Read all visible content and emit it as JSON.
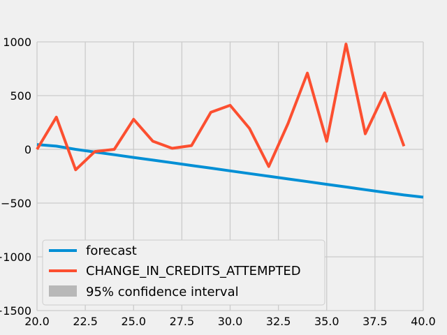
{
  "chart_data": {
    "type": "line",
    "title": "",
    "xlabel": "",
    "ylabel": "",
    "xlim": [
      20,
      40
    ],
    "ylim": [
      -1500,
      1000
    ],
    "grid": true,
    "legend_position": "lower-left",
    "x_ticks": [
      "20.0",
      "22.5",
      "25.0",
      "27.5",
      "30.0",
      "32.5",
      "35.0",
      "37.5",
      "40.0"
    ],
    "x_tick_values": [
      20,
      22.5,
      25,
      27.5,
      30,
      32.5,
      35,
      37.5,
      40
    ],
    "y_ticks": [
      "1000",
      "500",
      "0",
      "−500",
      "−1000",
      "−1500"
    ],
    "y_tick_values": [
      1000,
      500,
      0,
      -500,
      -1000,
      -1500
    ],
    "series": [
      {
        "name": "forecast",
        "color": "#008fd5",
        "x": [
          20,
          21,
          22,
          23,
          24,
          25,
          26,
          27,
          28,
          29,
          30,
          31,
          32,
          33,
          34,
          35,
          36,
          37,
          38,
          39,
          40
        ],
        "y": [
          45,
          30,
          0,
          -25,
          -50,
          -75,
          -100,
          -125,
          -150,
          -175,
          -200,
          -225,
          -250,
          -275,
          -300,
          -325,
          -350,
          -375,
          -400,
          -425,
          -445
        ]
      },
      {
        "name": "CHANGE_IN_CREDITS_ATTEMPTED",
        "color": "#fc4f30",
        "x": [
          20,
          21,
          22,
          23,
          24,
          25,
          26,
          27,
          28,
          29,
          30,
          31,
          32,
          33,
          34,
          35,
          36,
          37,
          38,
          39
        ],
        "y": [
          0,
          300,
          -190,
          -20,
          0,
          280,
          75,
          10,
          35,
          345,
          410,
          195,
          -160,
          240,
          710,
          75,
          980,
          145,
          525,
          30
        ]
      }
    ],
    "confidence_interval": {
      "name": "95% confidence interval",
      "color": "#b8b8b8"
    }
  }
}
